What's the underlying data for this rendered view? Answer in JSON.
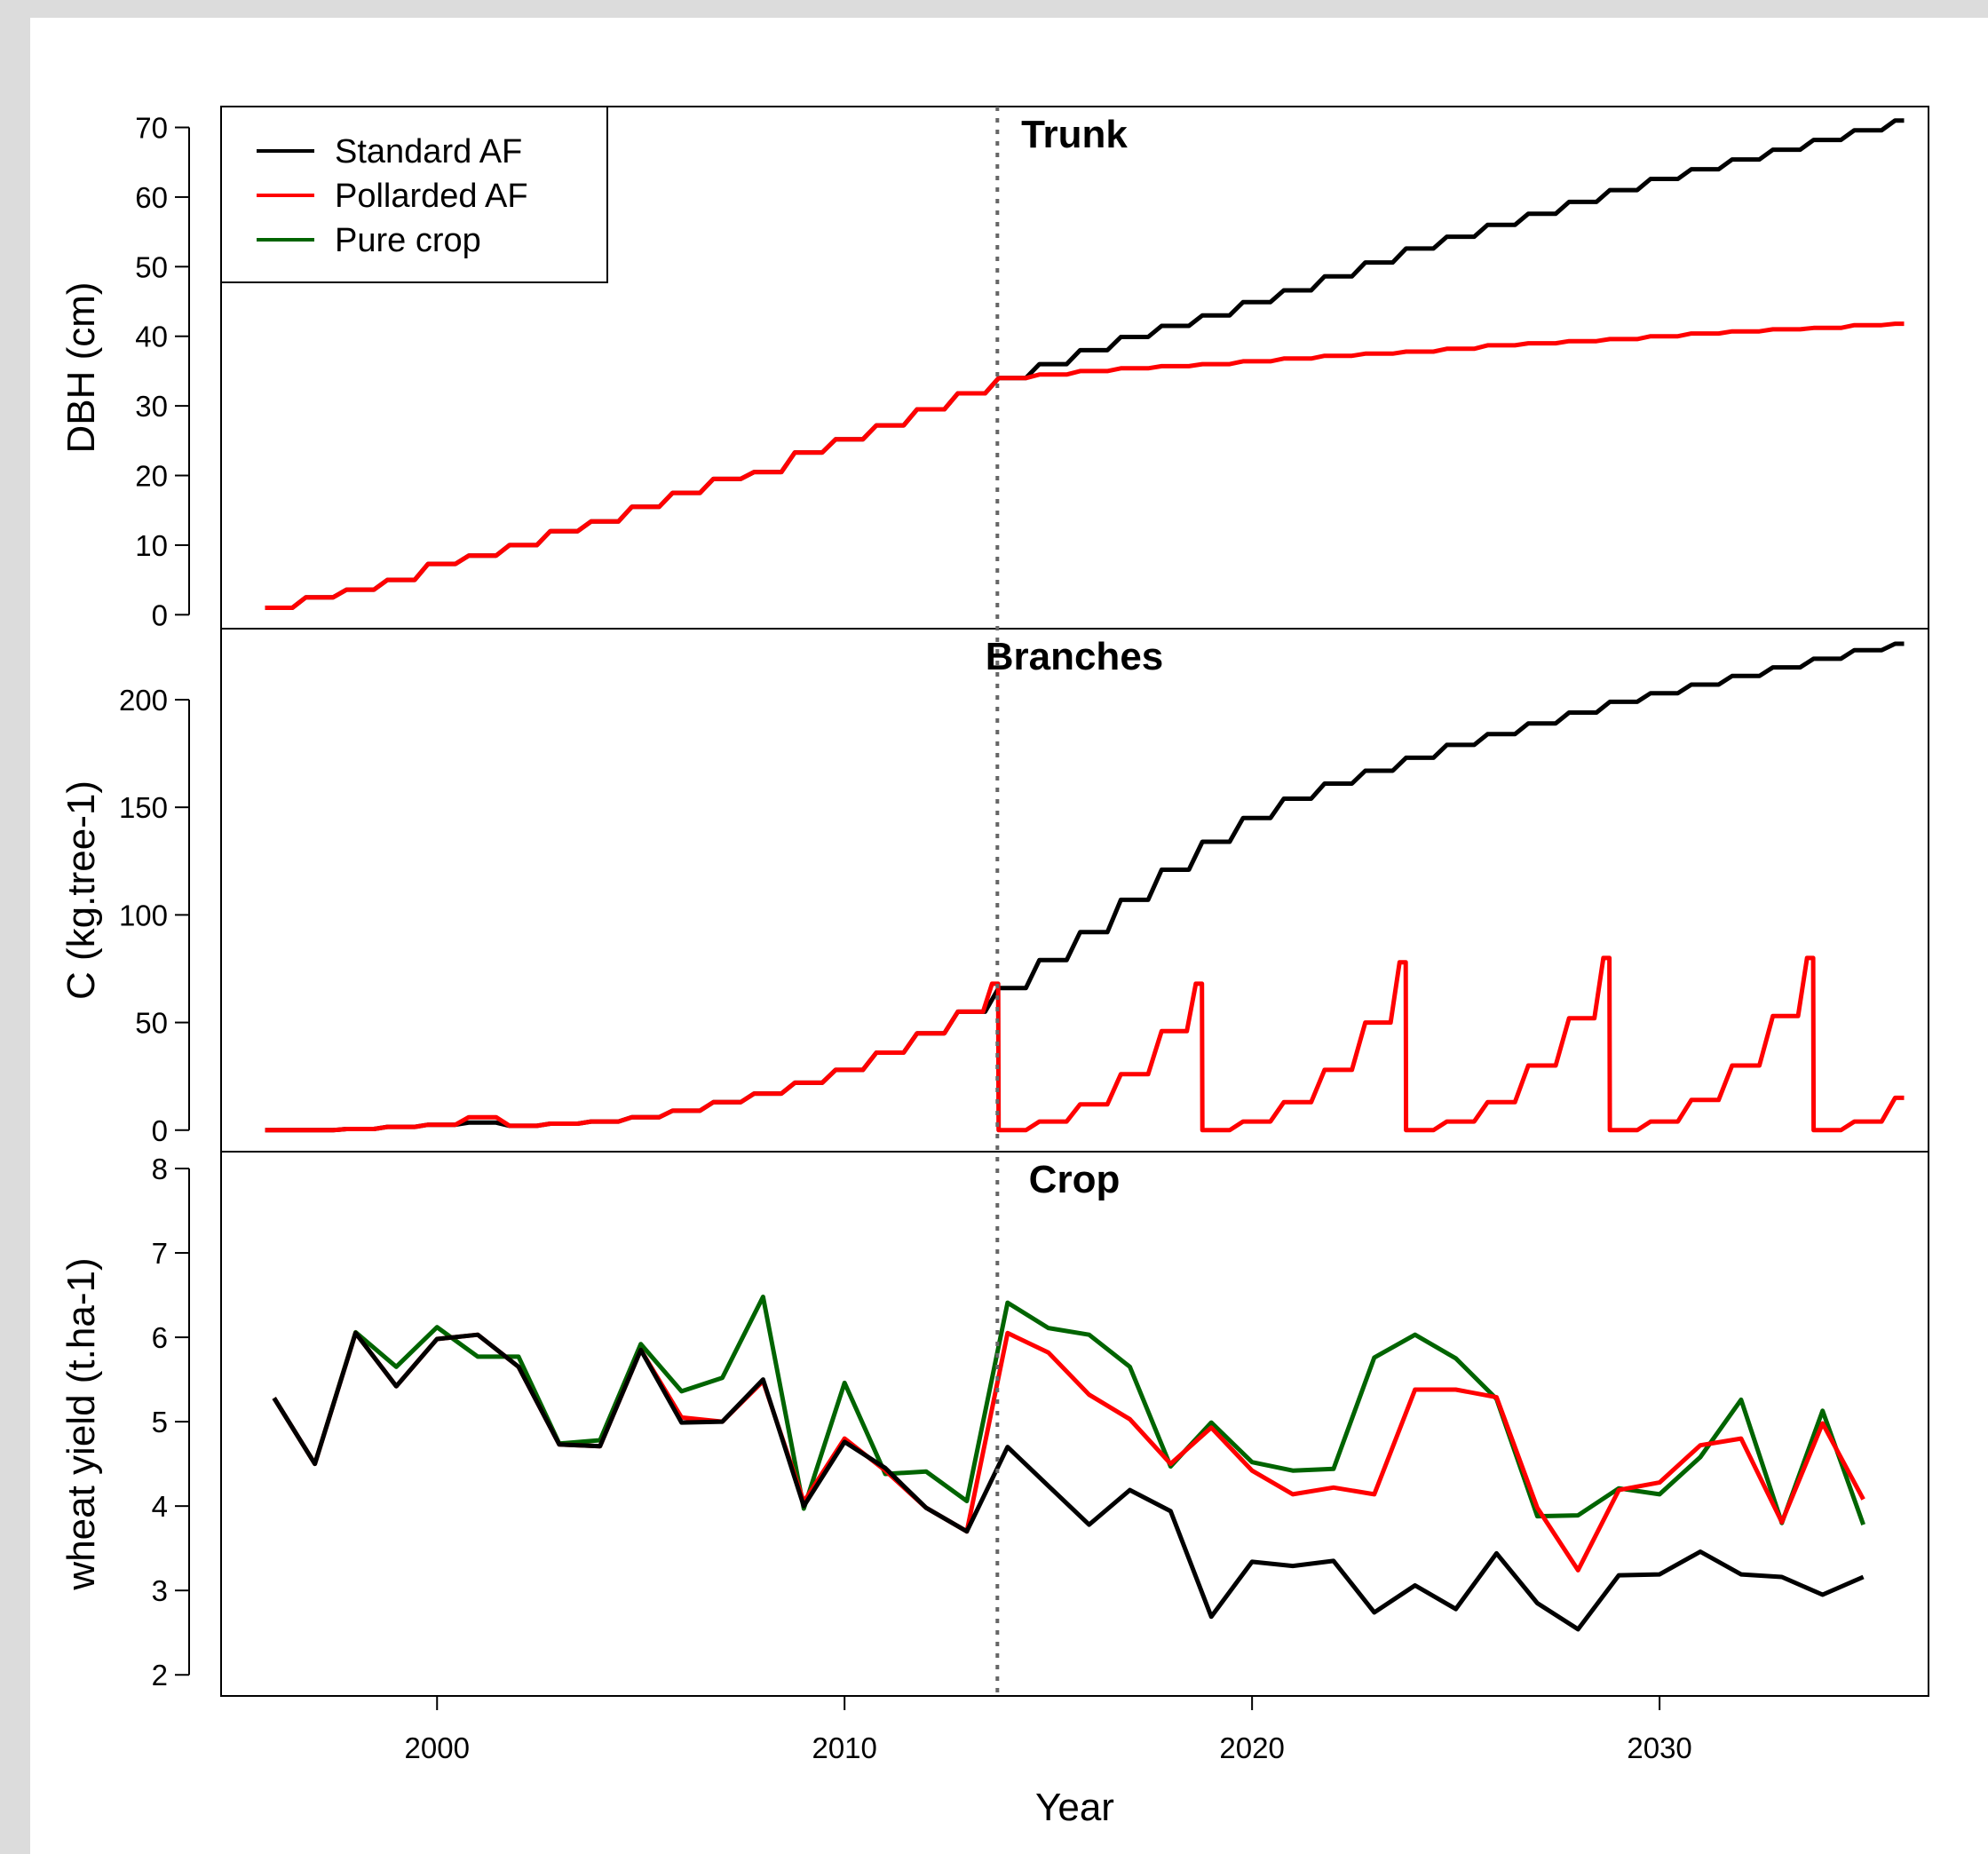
{
  "colors": {
    "standard_af": "#000000",
    "pollarded_af": "#ff0000",
    "pure_crop": "#006400",
    "page_background": "#dcdcdc",
    "plot_background": "#ffffff"
  },
  "chart_data": {
    "type": "line",
    "xlabel": "Year",
    "xlim": [
      1994.7,
      2036.6
    ],
    "x_ticks": [
      2000,
      2010,
      2020,
      2030
    ],
    "vline_x": 2013.75,
    "legend": {
      "placement": "top-left",
      "entries": [
        "Standard AF",
        "Pollarded AF",
        "Pure crop"
      ]
    },
    "panels": [
      {
        "title": "Trunk",
        "ylabel": "DBH (cm)",
        "ylim": [
          -2,
          73
        ],
        "y_ticks": [
          0,
          10,
          20,
          30,
          40,
          50,
          60,
          70
        ],
        "step_series": [
          {
            "name": "Standard AF",
            "annual": [
              [
                1996,
                1
              ],
              [
                1997,
                2.5
              ],
              [
                1998,
                3.6
              ],
              [
                1999,
                5
              ],
              [
                2000,
                7.3
              ],
              [
                2001,
                8.5
              ],
              [
                2002,
                10
              ],
              [
                2003,
                12
              ],
              [
                2004,
                13.4
              ],
              [
                2005,
                15.5
              ],
              [
                2006,
                17.5
              ],
              [
                2007,
                19.5
              ],
              [
                2008,
                20.5
              ],
              [
                2009,
                23.3
              ],
              [
                2010,
                25.2
              ],
              [
                2011,
                27.2
              ],
              [
                2012,
                29.5
              ],
              [
                2013,
                31.8
              ],
              [
                2014,
                34
              ],
              [
                2015,
                36
              ],
              [
                2016,
                38
              ],
              [
                2017,
                39.9
              ],
              [
                2018,
                41.5
              ],
              [
                2019,
                43
              ],
              [
                2020,
                44.9
              ],
              [
                2021,
                46.6
              ],
              [
                2022,
                48.6
              ],
              [
                2023,
                50.6
              ],
              [
                2024,
                52.6
              ],
              [
                2025,
                54.3
              ],
              [
                2026,
                56
              ],
              [
                2027,
                57.6
              ],
              [
                2028,
                59.3
              ],
              [
                2029,
                61
              ],
              [
                2030,
                62.6
              ],
              [
                2031,
                64
              ],
              [
                2032,
                65.4
              ],
              [
                2033,
                66.8
              ],
              [
                2034,
                68.2
              ],
              [
                2035,
                69.6
              ]
            ],
            "end_value": 71
          },
          {
            "name": "Pollarded AF",
            "annual": [
              [
                1996,
                1
              ],
              [
                1997,
                2.5
              ],
              [
                1998,
                3.6
              ],
              [
                1999,
                5
              ],
              [
                2000,
                7.3
              ],
              [
                2001,
                8.5
              ],
              [
                2002,
                10
              ],
              [
                2003,
                12
              ],
              [
                2004,
                13.4
              ],
              [
                2005,
                15.5
              ],
              [
                2006,
                17.5
              ],
              [
                2007,
                19.5
              ],
              [
                2008,
                20.5
              ],
              [
                2009,
                23.3
              ],
              [
                2010,
                25.2
              ],
              [
                2011,
                27.2
              ],
              [
                2012,
                29.5
              ],
              [
                2013,
                31.8
              ],
              [
                2014,
                34
              ],
              [
                2015,
                34.5
              ],
              [
                2016,
                35
              ],
              [
                2017,
                35.4
              ],
              [
                2018,
                35.7
              ],
              [
                2019,
                36
              ],
              [
                2020,
                36.4
              ],
              [
                2021,
                36.8
              ],
              [
                2022,
                37.2
              ],
              [
                2023,
                37.5
              ],
              [
                2024,
                37.8
              ],
              [
                2025,
                38.2
              ],
              [
                2026,
                38.7
              ],
              [
                2027,
                39
              ],
              [
                2028,
                39.3
              ],
              [
                2029,
                39.6
              ],
              [
                2030,
                40
              ],
              [
                2031,
                40.4
              ],
              [
                2032,
                40.7
              ],
              [
                2033,
                41
              ],
              [
                2034,
                41.2
              ],
              [
                2035,
                41.6
              ]
            ],
            "end_value": 41.8
          }
        ]
      },
      {
        "title": "Branches",
        "ylabel": "C (kg.tree-1)",
        "ylim": [
          -10,
          233
        ],
        "y_ticks": [
          0,
          50,
          100,
          150,
          200
        ],
        "step_series": [
          {
            "name": "Standard AF",
            "annual": [
              [
                1996,
                0
              ],
              [
                1997,
                0
              ],
              [
                1998,
                0.5
              ],
              [
                1999,
                1.5
              ],
              [
                2000,
                2.5
              ],
              [
                2001,
                3.5
              ],
              [
                2002,
                2
              ],
              [
                2003,
                3
              ],
              [
                2004,
                4
              ],
              [
                2005,
                6
              ],
              [
                2006,
                9
              ],
              [
                2007,
                13
              ],
              [
                2008,
                17
              ],
              [
                2009,
                22
              ],
              [
                2010,
                28
              ],
              [
                2011,
                36
              ],
              [
                2012,
                45
              ],
              [
                2013,
                55
              ],
              [
                2014,
                66
              ],
              [
                2015,
                79
              ],
              [
                2016,
                92
              ],
              [
                2017,
                107
              ],
              [
                2018,
                121
              ],
              [
                2019,
                134
              ],
              [
                2020,
                145
              ],
              [
                2021,
                154
              ],
              [
                2022,
                161
              ],
              [
                2023,
                167
              ],
              [
                2024,
                173
              ],
              [
                2025,
                179
              ],
              [
                2026,
                184
              ],
              [
                2027,
                189
              ],
              [
                2028,
                194
              ],
              [
                2029,
                199
              ],
              [
                2030,
                203
              ],
              [
                2031,
                207
              ],
              [
                2032,
                211
              ],
              [
                2033,
                215
              ],
              [
                2034,
                219
              ],
              [
                2035,
                223
              ]
            ],
            "end_value": 226
          },
          {
            "name": "Pollarded AF",
            "annual": [
              [
                1996,
                0
              ],
              [
                1997,
                0
              ],
              [
                1998,
                0.5
              ],
              [
                1999,
                1.5
              ],
              [
                2000,
                2.5
              ],
              [
                2001,
                6
              ],
              [
                2002,
                2
              ],
              [
                2003,
                3
              ],
              [
                2004,
                4
              ],
              [
                2005,
                6
              ],
              [
                2006,
                9
              ],
              [
                2007,
                13
              ],
              [
                2008,
                17
              ],
              [
                2009,
                22
              ],
              [
                2010,
                28
              ],
              [
                2011,
                36
              ],
              [
                2012,
                45
              ],
              [
                2013,
                55
              ],
              [
                2014,
                0
              ],
              [
                2015,
                4
              ],
              [
                2016,
                12
              ],
              [
                2017,
                26
              ],
              [
                2018,
                46
              ],
              [
                2019,
                0
              ],
              [
                2020,
                4
              ],
              [
                2021,
                13
              ],
              [
                2022,
                28
              ],
              [
                2023,
                50
              ],
              [
                2024,
                0
              ],
              [
                2025,
                4
              ],
              [
                2026,
                13
              ],
              [
                2027,
                30
              ],
              [
                2028,
                52
              ],
              [
                2029,
                0
              ],
              [
                2030,
                4
              ],
              [
                2031,
                14
              ],
              [
                2032,
                30
              ],
              [
                2033,
                53
              ],
              [
                2034,
                0
              ],
              [
                2035,
                4
              ]
            ],
            "end_value": 15,
            "peaks": [
              [
                2013,
                68
              ],
              [
                2018,
                68
              ],
              [
                2023,
                78
              ],
              [
                2028,
                80
              ],
              [
                2033,
                80
              ]
            ]
          }
        ]
      },
      {
        "title": "Crop",
        "ylabel": "wheat yield (t.ha-1)",
        "ylim": [
          1.75,
          8.2
        ],
        "y_ticks": [
          2,
          3,
          4,
          5,
          6,
          7,
          8
        ],
        "x": [
          1996,
          1997,
          1998,
          1999,
          2000,
          2001,
          2002,
          2003,
          2004,
          2005,
          2006,
          2007,
          2008,
          2009,
          2010,
          2011,
          2012,
          2013,
          2014,
          2015,
          2016,
          2017,
          2018,
          2019,
          2020,
          2021,
          2022,
          2023,
          2024,
          2025,
          2026,
          2027,
          2028,
          2029,
          2030,
          2031,
          2032,
          2033,
          2034,
          2035
        ],
        "series": [
          {
            "name": "Standard AF",
            "values": [
              5.28,
              4.5,
              6.05,
              5.42,
              5.98,
              6.03,
              5.65,
              4.73,
              4.71,
              5.85,
              4.99,
              5.0,
              5.5,
              4.0,
              4.76,
              4.45,
              3.98,
              3.7,
              4.7,
              4.24,
              3.78,
              4.19,
              3.94,
              2.69,
              3.34,
              3.29,
              3.35,
              2.74,
              3.06,
              2.78,
              3.44,
              2.85,
              2.54,
              3.18,
              3.19,
              3.46,
              3.19,
              3.16,
              2.95,
              3.16
            ]
          },
          {
            "name": "Pollarded AF",
            "values": [
              5.28,
              4.5,
              6.05,
              5.42,
              5.98,
              6.03,
              5.65,
              4.73,
              4.71,
              5.85,
              5.05,
              5.0,
              5.48,
              4.05,
              4.8,
              4.42,
              3.98,
              3.7,
              6.05,
              5.82,
              5.32,
              5.03,
              4.5,
              4.93,
              4.42,
              4.14,
              4.22,
              4.14,
              5.38,
              5.38,
              5.29,
              3.98,
              3.24,
              4.19,
              4.28,
              4.72,
              4.8,
              3.81,
              4.98,
              4.08
            ]
          },
          {
            "name": "Pure crop",
            "values": [
              5.28,
              4.5,
              6.06,
              5.65,
              6.12,
              5.77,
              5.77,
              4.74,
              4.78,
              5.92,
              5.36,
              5.52,
              6.48,
              3.97,
              5.46,
              4.38,
              4.41,
              4.06,
              6.41,
              6.11,
              6.03,
              5.65,
              4.47,
              4.99,
              4.52,
              4.42,
              4.44,
              5.76,
              6.03,
              5.75,
              5.27,
              3.88,
              3.89,
              4.21,
              4.14,
              4.58,
              5.26,
              3.8,
              5.13,
              3.78
            ]
          }
        ]
      }
    ]
  }
}
